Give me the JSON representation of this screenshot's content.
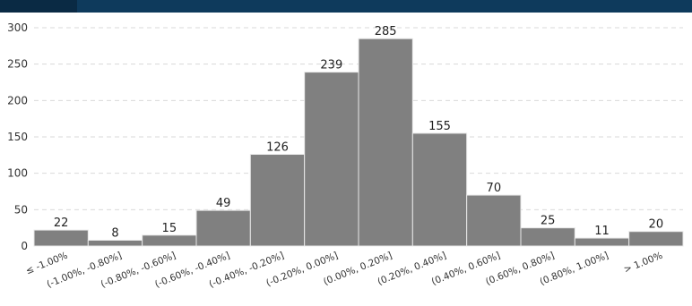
{
  "chart_data": {
    "type": "bar",
    "title": "",
    "xlabel": "",
    "ylabel": "",
    "categories": [
      "≤ -1.00%",
      "(-1.00%, -0.80%]",
      "(-0.80%, -0.60%]",
      "(-0.60%, -0.40%]",
      "(-0.40%, -0.20%]",
      "(-0.20%, 0.00%]",
      "(0.00%, 0.20%]",
      "(0.20%, 0.40%]",
      "(0.40%, 0.60%]",
      "(0.60%, 0.80%]",
      "(0.80%, 1.00%]",
      "> 1.00%"
    ],
    "values": [
      22,
      8,
      15,
      49,
      126,
      239,
      285,
      155,
      70,
      25,
      11,
      20
    ],
    "ylim": [
      0,
      300
    ],
    "yticks": [
      0,
      50,
      100,
      150,
      200,
      250,
      300
    ],
    "grid": true,
    "legend": "none",
    "bar_color": "#808080",
    "bar_edge_color": "#e8e8e8",
    "grid_color": "#d9d9d9"
  },
  "colors": {
    "header_bar": "#0e3a5c"
  }
}
